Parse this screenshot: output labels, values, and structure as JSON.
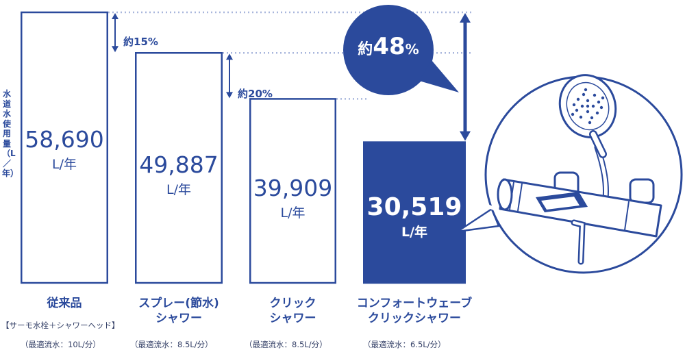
{
  "colors": {
    "primary": "#2b4a9c",
    "dots": "#a8b6dc",
    "white": "#ffffff"
  },
  "y_axis_label": "水道水使用量（L／年）",
  "unit": "L/年",
  "chart_data": {
    "type": "bar",
    "categories": [
      "従来品",
      "スプレー(節水)シャワー",
      "クリックシャワー",
      "コンフォートウェーブクリックシャワー"
    ],
    "values": [
      58690,
      49887,
      39909,
      30519
    ],
    "value_labels": [
      "58,690",
      "49,887",
      "39,909",
      "30,519"
    ],
    "ylabel": "水道水使用量（L／年）",
    "highlight_index": 3
  },
  "categories": [
    {
      "line1": "従来品",
      "line2": ""
    },
    {
      "line1": "スプレー(節水)",
      "line2": "シャワー"
    },
    {
      "line1": "クリック",
      "line2": "シャワー"
    },
    {
      "line1": "コンフォートウェーブ",
      "line2": "クリックシャワー"
    }
  ],
  "sub_note": "【サーモ水栓＋シャワーヘッド】",
  "flow_notes": [
    "（最適流水：10L/分）",
    "（最適流水：8.5L/分）",
    "（最適流水：8.5L/分）",
    "（最適流水：6.5L/分）"
  ],
  "reductions": [
    {
      "prefix": "約",
      "value": "15",
      "suffix": "%"
    },
    {
      "prefix": "約",
      "value": "20",
      "suffix": "%"
    }
  ],
  "bubble": {
    "prefix": "約",
    "value": "48",
    "suffix": "%"
  },
  "illustration": {
    "icon": "faucet-shower-icon"
  }
}
